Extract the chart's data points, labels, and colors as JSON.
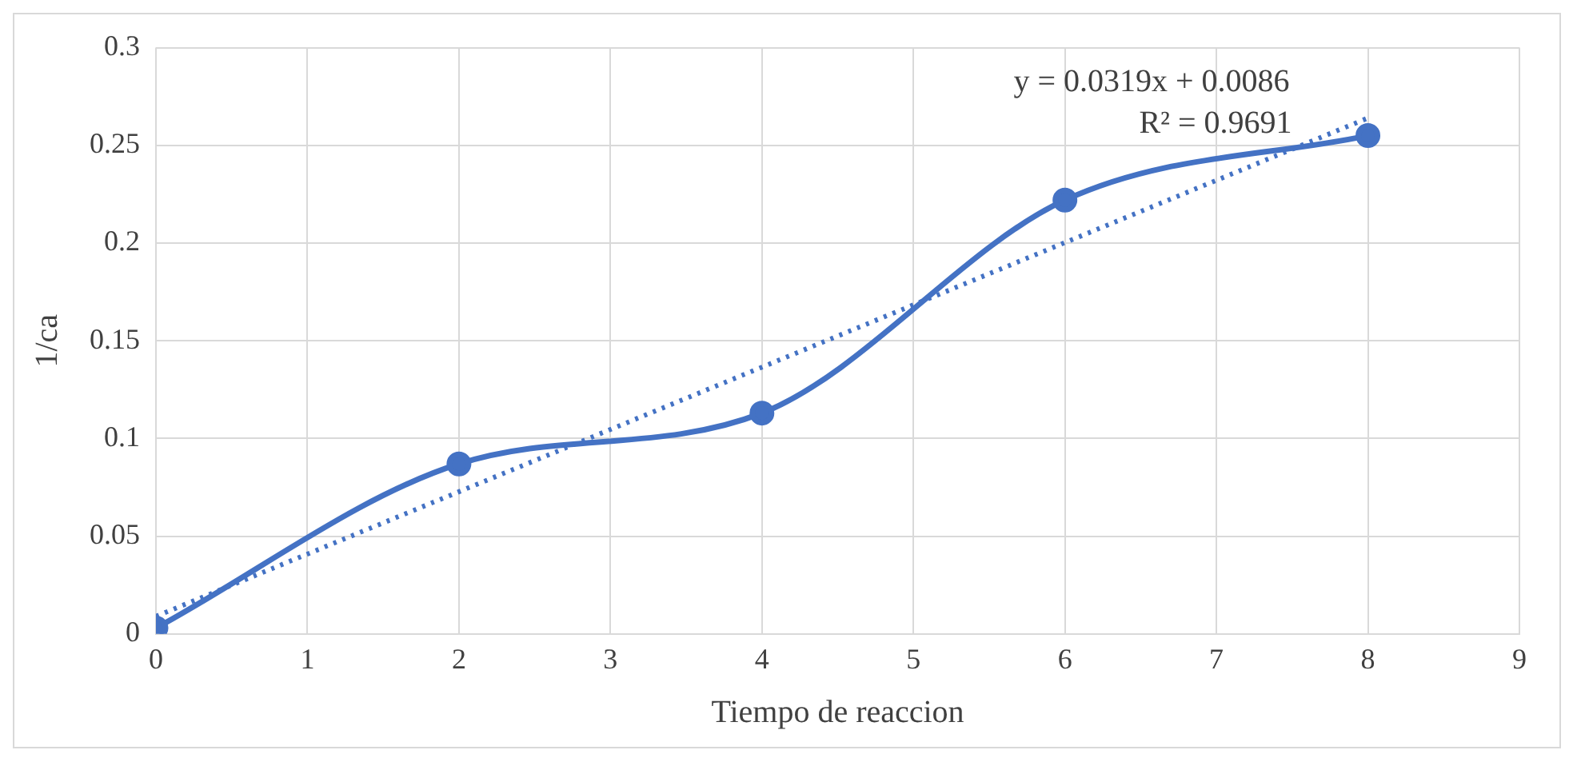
{
  "chart_data": {
    "type": "line",
    "xlabel": "Tiempo de reaccion",
    "ylabel": "1/ca",
    "x": [
      0,
      2,
      4,
      6,
      8
    ],
    "series": [
      {
        "type": "line",
        "color": "#4472c4",
        "values": [
          0.003,
          0.087,
          0.113,
          0.222,
          0.255
        ],
        "marker": "circle",
        "line_style": "solid"
      },
      {
        "type": "line",
        "color": "#4472c4",
        "x": [
          0,
          8
        ],
        "values": [
          0.009,
          0.264
        ],
        "marker": "none",
        "line_style": "dotted"
      }
    ],
    "xlim": [
      0,
      9
    ],
    "xticks": [
      0,
      1,
      2,
      3,
      4,
      5,
      6,
      7,
      8,
      9
    ],
    "ylim": [
      0,
      0.3
    ],
    "yticks": [
      0,
      0.05,
      0.1,
      0.15,
      0.2,
      0.25,
      0.3
    ],
    "grid": true,
    "legend": false,
    "annotations": [
      "y = 0.0319x + 0.0086",
      "R² = 0.9691"
    ]
  }
}
